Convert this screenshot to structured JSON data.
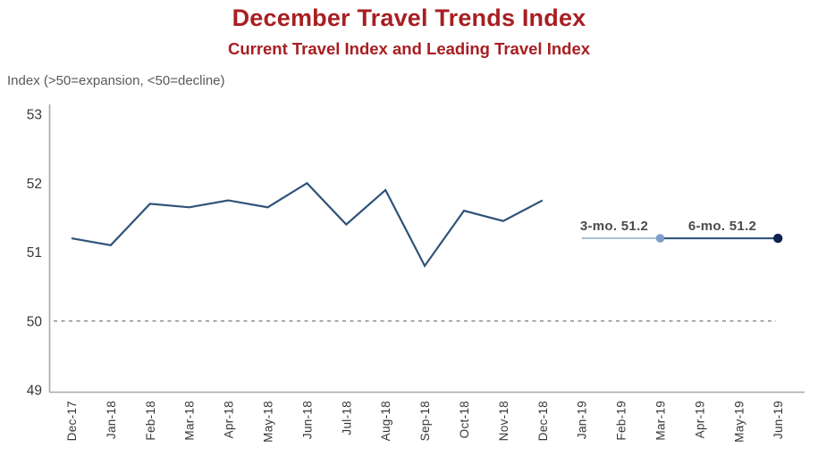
{
  "header": {
    "title": "December Travel Trends Index",
    "subtitle": "Current Travel Index and Leading Travel Index"
  },
  "axis_note": "Index (>50=expansion, <50=decline)",
  "theme": {
    "title-color": "#a81e22",
    "note-color": "#595959",
    "annotation-color": "#4b4b4b",
    "tick-color": "#383838",
    "axis-color": "#a8a8a8",
    "reference-color": "#8f8f8f",
    "main-line-color": "#2e5278",
    "forecast-light-color": "#aabfda",
    "forecast-light-dot-color": "#7f9dcb",
    "forecast-dark-color": "#30567d",
    "forecast-dark-dot-color": "#0e2250"
  },
  "chart_data": {
    "type": "line",
    "title": "December Travel Trends Index",
    "subtitle": "Current Travel Index and Leading Travel Index",
    "ylabel": "Index (>50=expansion, <50=decline)",
    "categories": [
      "Dec-17",
      "Jan-18",
      "Feb-18",
      "Mar-18",
      "Apr-18",
      "May-18",
      "Jun-18",
      "Jul-18",
      "Aug-18",
      "Sep-18",
      "Oct-18",
      "Nov-18",
      "Dec-18",
      "Jan-19",
      "Feb-19",
      "Mar-19",
      "Apr-19",
      "May-19",
      "Jun-19"
    ],
    "ylim": [
      49,
      53
    ],
    "yticks": [
      53,
      52,
      51,
      50,
      49
    ],
    "grid": false,
    "legend_position": "inline-annotations",
    "reference_line": {
      "value": 50,
      "style": "dashed"
    },
    "series": [
      {
        "name": "Current Travel Index (historical)",
        "start_index": 0,
        "values": [
          51.2,
          51.1,
          51.7,
          51.65,
          51.75,
          51.65,
          52.0,
          51.4,
          51.9,
          50.8,
          51.6,
          51.45,
          51.75
        ]
      },
      {
        "name": "Leading Travel Index 3-month forecast",
        "label": "3-mo. 51.2",
        "start_index": 13,
        "end_index": 15,
        "value": 51.2,
        "marker_at": "Mar-19"
      },
      {
        "name": "Leading Travel Index 6-month forecast",
        "label": "6-mo. 51.2",
        "start_index": 15,
        "end_index": 18,
        "value": 51.2,
        "marker_at": "Jun-19"
      }
    ]
  }
}
